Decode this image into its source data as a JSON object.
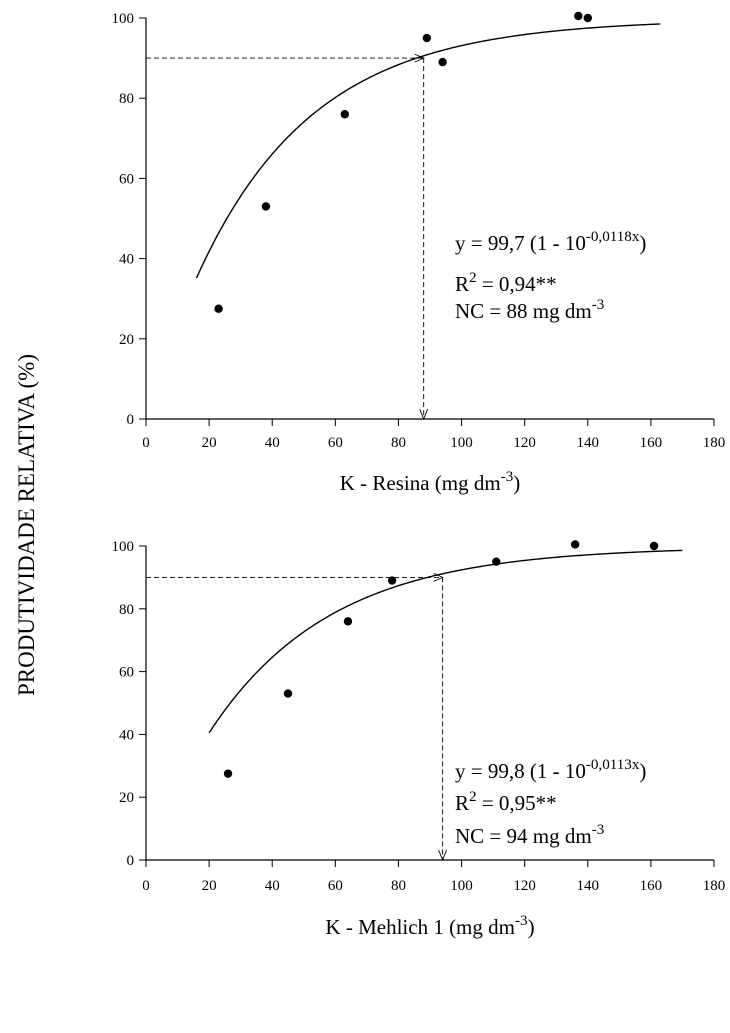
{
  "shared_ylabel": "PRODUTIVIDADE RELATIVA (%)",
  "chart_data": [
    {
      "type": "scatter",
      "title": "",
      "xlabel": "K - Resina (mg dm",
      "xlabel_sup": "-3",
      "xlabel_end": ")",
      "ylabel": "PRODUTIVIDADE RELATIVA (%)",
      "xlim": [
        0,
        180
      ],
      "ylim": [
        0,
        100
      ],
      "xticks": [
        "0",
        "20",
        "40",
        "60",
        "80",
        "100",
        "120",
        "140",
        "160",
        "180"
      ],
      "yticks": [
        "0",
        "20",
        "40",
        "60",
        "80",
        "100"
      ],
      "grid": false,
      "points": [
        {
          "x": 23,
          "y": 27.5
        },
        {
          "x": 38,
          "y": 53
        },
        {
          "x": 63,
          "y": 76
        },
        {
          "x": 89,
          "y": 95
        },
        {
          "x": 94,
          "y": 89
        },
        {
          "x": 137,
          "y": 100.5
        },
        {
          "x": 140,
          "y": 100
        }
      ],
      "fit": {
        "a": 99.7,
        "b": 0.0118,
        "x_from": 16,
        "x_to": 163
      },
      "critical": {
        "x": 88,
        "y": 90
      },
      "equation": {
        "line1_main": "y = 99,7 (1 - 10",
        "line1_sup": "-0,0118x",
        "line1_end": ")",
        "line2_main": "R",
        "line2_sup": "2",
        "line2_end": " = 0,94**",
        "line3_main": "NC = 88 mg dm",
        "line3_sup": "-3"
      }
    },
    {
      "type": "scatter",
      "title": "",
      "xlabel": "K - Mehlich 1 (mg dm",
      "xlabel_sup": "-3",
      "xlabel_end": ")",
      "ylabel": "PRODUTIVIDADE RELATIVA (%)",
      "xlim": [
        0,
        180
      ],
      "ylim": [
        0,
        100
      ],
      "xticks": [
        "0",
        "20",
        "40",
        "60",
        "80",
        "100",
        "120",
        "140",
        "160",
        "180"
      ],
      "yticks": [
        "0",
        "20",
        "40",
        "60",
        "80",
        "100"
      ],
      "grid": false,
      "points": [
        {
          "x": 26,
          "y": 27.5
        },
        {
          "x": 45,
          "y": 53
        },
        {
          "x": 64,
          "y": 76
        },
        {
          "x": 78,
          "y": 89
        },
        {
          "x": 111,
          "y": 95
        },
        {
          "x": 136,
          "y": 100.5
        },
        {
          "x": 161,
          "y": 100
        }
      ],
      "fit": {
        "a": 99.8,
        "b": 0.0113,
        "x_from": 20,
        "x_to": 170
      },
      "critical": {
        "x": 94,
        "y": 90
      },
      "equation": {
        "line1_main": "y = 99,8 (1 - 10",
        "line1_sup": "-0,0113x",
        "line1_end": ")",
        "line2_main": "R",
        "line2_sup": "2",
        "line2_end": " = 0,95**",
        "line3_main": "NC = 94 mg dm",
        "line3_sup": "-3"
      }
    }
  ]
}
